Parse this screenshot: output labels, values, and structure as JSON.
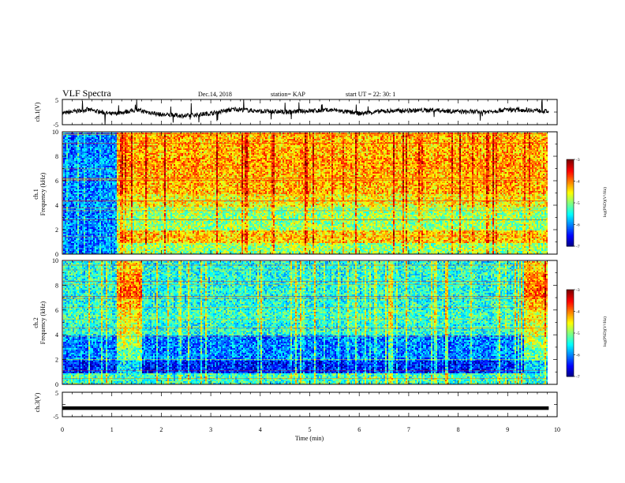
{
  "header": {
    "title": "VLF Spectra",
    "date": "Dec.14, 2018",
    "station": "station= KAP",
    "start": "start  UT =   22: 30: 1"
  },
  "chart_data": [
    {
      "panel": "ch1-waveform",
      "type": "line",
      "ylabel": "ch.1(V)",
      "ylim": [
        -5,
        5
      ],
      "xlim": [
        0,
        9.83
      ],
      "y_tick_labels": [
        "5",
        "-5"
      ],
      "series": [
        {
          "x": [
            0.0,
            0.5,
            1.0,
            1.5,
            2.0,
            2.5,
            3.0,
            3.5,
            4.0,
            4.5,
            5.0,
            5.5,
            6.0,
            6.5,
            7.0,
            7.5,
            8.0,
            8.5,
            9.0,
            9.5,
            9.83
          ],
          "values": [
            -0.5,
            1.0,
            -0.8,
            0.8,
            -1.0,
            -1.5,
            -0.5,
            1.2,
            0.3,
            0.0,
            0.5,
            0.8,
            -0.6,
            0.4,
            0.6,
            0.8,
            0.2,
            0.0,
            1.0,
            0.8,
            0.2
          ]
        }
      ]
    },
    {
      "panel": "ch1-spectrogram",
      "type": "heatmap",
      "ylabel": "ch.1",
      "ylabel2": "Frequency  (kHz)",
      "ylim": [
        0,
        10
      ],
      "xlim": [
        0,
        9.83
      ],
      "y_tick_labels": [
        "0",
        "2",
        "4",
        "6",
        "8",
        "10"
      ],
      "colorbar": {
        "label": "log(PSD)(V²/Hz)",
        "range": [
          -7,
          -3
        ],
        "tick_labels": [
          "-3",
          "-4",
          "-5",
          "-6",
          "-7"
        ]
      },
      "freq_khz": [
        0.5,
        1.5,
        2.5,
        3.5,
        4.5,
        5.5,
        6.5,
        7.5,
        8.5,
        9.5
      ],
      "segments_min": [
        [
          0,
          1.08
        ],
        [
          1.08,
          1.6
        ],
        [
          1.6,
          9.3
        ],
        [
          9.3,
          9.83
        ]
      ],
      "log_psd": [
        [
          -6.0,
          -6.0,
          -6.0,
          -6.0,
          -6.0,
          -6.0,
          -6.0,
          -6.0,
          -6.0,
          -6.0
        ],
        [
          -4.9,
          -4.3,
          -4.9,
          -4.9,
          -4.5,
          -4.2,
          -4.2,
          -4.1,
          -4.2,
          -4.2
        ],
        [
          -4.9,
          -4.3,
          -4.9,
          -4.9,
          -4.5,
          -4.2,
          -4.2,
          -4.1,
          -4.2,
          -4.2
        ],
        [
          -4.9,
          -4.3,
          -4.9,
          -4.9,
          -4.5,
          -4.2,
          -4.2,
          -4.1,
          -4.2,
          -4.2
        ]
      ]
    },
    {
      "panel": "ch2-spectrogram",
      "type": "heatmap",
      "ylabel": "ch.2",
      "ylabel2": "Frequency  (kHz)",
      "ylim": [
        0,
        10
      ],
      "xlim": [
        0,
        9.83
      ],
      "y_tick_labels": [
        "0",
        "2",
        "4",
        "6",
        "8",
        "10"
      ],
      "colorbar": {
        "label": "log(PSD)(V²/Hz)",
        "range": [
          -7,
          -3
        ],
        "tick_labels": [
          "-3",
          "-4",
          "-5",
          "-6",
          "-7"
        ]
      },
      "freq_khz": [
        0.5,
        1.5,
        2.5,
        3.5,
        4.5,
        5.5,
        6.5,
        7.5,
        8.5,
        9.5
      ],
      "segments_min": [
        [
          0,
          1.08
        ],
        [
          1.08,
          1.6
        ],
        [
          1.6,
          9.3
        ],
        [
          9.3,
          9.83
        ]
      ],
      "log_psd": [
        [
          -5.3,
          -6.4,
          -6.0,
          -6.0,
          -5.4,
          -5.3,
          -5.4,
          -5.4,
          -5.4,
          -5.4
        ],
        [
          -5.3,
          -5.6,
          -5.1,
          -4.8,
          -4.6,
          -4.5,
          -4.2,
          -3.9,
          -4.0,
          -4.3
        ],
        [
          -5.3,
          -6.4,
          -6.0,
          -6.0,
          -5.4,
          -5.3,
          -5.4,
          -5.4,
          -5.4,
          -5.4
        ],
        [
          -5.3,
          -5.6,
          -5.1,
          -4.8,
          -4.6,
          -4.5,
          -4.2,
          -3.9,
          -4.0,
          -4.3
        ]
      ]
    },
    {
      "panel": "ch3-waveform",
      "type": "line",
      "ylabel": "ch.3(V)",
      "ylim": [
        -5,
        5
      ],
      "xlim": [
        0,
        9.83
      ],
      "y_tick_labels": [
        "5",
        "-5"
      ],
      "series": [
        {
          "x": [
            0,
            9.83
          ],
          "values": [
            -1.5,
            -1.5
          ]
        }
      ]
    }
  ],
  "x_axis": {
    "label": "Time  (min)",
    "range": [
      0,
      10
    ],
    "tick_labels": [
      "0",
      "1",
      "2",
      "3",
      "4",
      "5",
      "6",
      "7",
      "8",
      "9",
      "10"
    ]
  },
  "colors": {
    "waveform": "#000000",
    "axes": "#000000"
  }
}
